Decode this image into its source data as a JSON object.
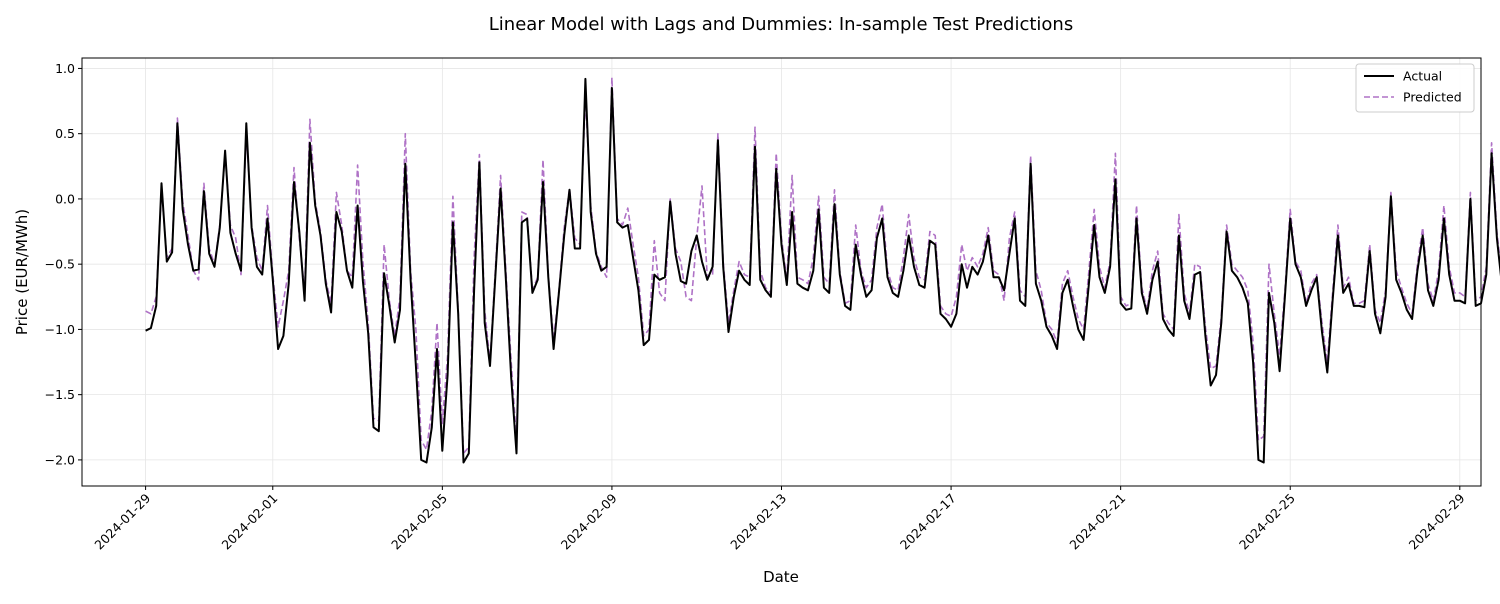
{
  "chart_data": {
    "type": "line",
    "title": "Linear Model with Lags and Dummies: In-sample Test Predictions",
    "xlabel": "Date",
    "ylabel": "Price (EUR/MWh)",
    "xlim": [
      "2024-01-27T12:00",
      "2024-02-29T12:00"
    ],
    "ylim": [
      -2.2,
      1.08
    ],
    "grid": true,
    "legend_position": "top-right",
    "x_ticks": [
      "2024-01-29",
      "2024-02-01",
      "2024-02-05",
      "2024-02-09",
      "2024-02-13",
      "2024-02-17",
      "2024-02-21",
      "2024-02-25",
      "2024-02-29"
    ],
    "y_ticks": [
      -2.0,
      -1.5,
      -1.0,
      -0.5,
      0.0,
      0.5,
      1.0
    ],
    "y_tick_labels": [
      "−2.0",
      "−1.5",
      "−1.0",
      "−0.5",
      "0.0",
      "0.5",
      "1.0"
    ],
    "x_start": "2024-01-29T00:00",
    "x_step_hours": 3,
    "series": [
      {
        "name": "Actual",
        "color": "#000000",
        "style": "solid",
        "values": [
          -1.01,
          -0.99,
          -0.82,
          0.12,
          -0.48,
          -0.41,
          0.58,
          -0.08,
          -0.35,
          -0.55,
          -0.54,
          0.06,
          -0.42,
          -0.52,
          -0.22,
          0.37,
          -0.26,
          -0.42,
          -0.55,
          0.58,
          -0.22,
          -0.52,
          -0.58,
          -0.15,
          -0.62,
          -1.15,
          -1.05,
          -0.65,
          0.13,
          -0.25,
          -0.78,
          0.43,
          -0.05,
          -0.28,
          -0.65,
          -0.87,
          -0.1,
          -0.25,
          -0.55,
          -0.68,
          -0.05,
          -0.63,
          -1.03,
          -1.75,
          -1.78,
          -0.57,
          -0.82,
          -1.1,
          -0.85,
          0.27,
          -0.62,
          -1.28,
          -2.0,
          -2.02,
          -1.75,
          -1.15,
          -1.93,
          -1.35,
          -0.18,
          -0.88,
          -2.02,
          -1.95,
          -0.7,
          0.28,
          -0.95,
          -1.28,
          -0.6,
          0.08,
          -0.62,
          -1.37,
          -1.95,
          -0.18,
          -0.15,
          -0.72,
          -0.62,
          0.13,
          -0.6,
          -1.15,
          -0.72,
          -0.28,
          0.07,
          -0.38,
          -0.38,
          0.92,
          -0.1,
          -0.42,
          -0.55,
          -0.52,
          0.85,
          -0.18,
          -0.22,
          -0.2,
          -0.45,
          -0.7,
          -1.12,
          -1.08,
          -0.58,
          -0.62,
          -0.6,
          -0.02,
          -0.42,
          -0.63,
          -0.65,
          -0.4,
          -0.28,
          -0.48,
          -0.62,
          -0.52,
          0.45,
          -0.52,
          -1.02,
          -0.75,
          -0.55,
          -0.62,
          -0.66,
          0.4,
          -0.62,
          -0.7,
          -0.75,
          0.23,
          -0.35,
          -0.66,
          -0.1,
          -0.65,
          -0.68,
          -0.7,
          -0.55,
          -0.08,
          -0.68,
          -0.72,
          -0.04,
          -0.58,
          -0.82,
          -0.85,
          -0.35,
          -0.58,
          -0.75,
          -0.7,
          -0.3,
          -0.15,
          -0.6,
          -0.72,
          -0.75,
          -0.55,
          -0.28,
          -0.52,
          -0.66,
          -0.68,
          -0.32,
          -0.35,
          -0.88,
          -0.92,
          -0.98,
          -0.88,
          -0.5,
          -0.68,
          -0.52,
          -0.58,
          -0.48,
          -0.28,
          -0.6,
          -0.6,
          -0.7,
          -0.42,
          -0.15,
          -0.78,
          -0.82,
          0.27,
          -0.65,
          -0.78,
          -0.98,
          -1.05,
          -1.15,
          -0.72,
          -0.62,
          -0.82,
          -1.0,
          -1.08,
          -0.65,
          -0.2,
          -0.6,
          -0.72,
          -0.52,
          0.15,
          -0.8,
          -0.85,
          -0.84,
          -0.15,
          -0.72,
          -0.88,
          -0.62,
          -0.48,
          -0.92,
          -1.0,
          -1.05,
          -0.28,
          -0.78,
          -0.92,
          -0.58,
          -0.56,
          -1.05,
          -1.43,
          -1.35,
          -0.95,
          -0.25,
          -0.55,
          -0.6,
          -0.68,
          -0.8,
          -1.25,
          -2.0,
          -2.02,
          -0.72,
          -0.95,
          -1.32,
          -0.75,
          -0.15,
          -0.5,
          -0.6,
          -0.82,
          -0.7,
          -0.6,
          -1.02,
          -1.33,
          -0.78,
          -0.28,
          -0.72,
          -0.65,
          -0.82,
          -0.82,
          -0.83,
          -0.4,
          -0.88,
          -1.03,
          -0.75,
          0.02,
          -0.62,
          -0.72,
          -0.85,
          -0.92,
          -0.55,
          -0.28,
          -0.7,
          -0.82,
          -0.62,
          -0.15,
          -0.58,
          -0.78,
          -0.78,
          -0.8,
          0.0,
          -0.82,
          -0.8,
          -0.58,
          0.35,
          -0.3,
          -0.68,
          -0.72,
          -0.58,
          0.23,
          -0.18
        ]
      },
      {
        "name": "Predicted",
        "color": "#af72c6",
        "style": "dashed",
        "values": [
          -0.86,
          -0.88,
          -0.75,
          0.08,
          -0.45,
          -0.38,
          0.62,
          -0.02,
          -0.28,
          -0.55,
          -0.62,
          0.12,
          -0.38,
          -0.5,
          -0.2,
          0.35,
          -0.2,
          -0.3,
          -0.58,
          0.52,
          -0.2,
          -0.45,
          -0.55,
          -0.05,
          -0.58,
          -0.98,
          -0.78,
          -0.55,
          0.24,
          -0.3,
          -0.7,
          0.61,
          -0.02,
          -0.25,
          -0.62,
          -0.8,
          0.05,
          -0.2,
          -0.55,
          -0.6,
          0.26,
          -0.48,
          -0.95,
          -1.68,
          -1.7,
          -0.35,
          -0.78,
          -1.05,
          -0.75,
          0.5,
          -0.55,
          -1.0,
          -1.85,
          -1.92,
          -1.62,
          -0.95,
          -1.72,
          -1.2,
          0.02,
          -0.85,
          -1.95,
          -1.9,
          -0.45,
          0.34,
          -0.85,
          -1.25,
          -0.55,
          0.18,
          -0.55,
          -1.25,
          -1.85,
          -0.1,
          -0.12,
          -0.7,
          -0.6,
          0.3,
          -0.58,
          -1.08,
          -0.7,
          -0.22,
          0.08,
          -0.3,
          -0.35,
          0.8,
          -0.05,
          -0.4,
          -0.52,
          -0.6,
          0.93,
          -0.15,
          -0.2,
          -0.07,
          -0.35,
          -0.6,
          -1.05,
          -1.0,
          -0.32,
          -0.72,
          -0.78,
          0.0,
          -0.38,
          -0.48,
          -0.75,
          -0.78,
          -0.3,
          0.1,
          -0.6,
          -0.58,
          0.5,
          -0.48,
          -0.95,
          -0.7,
          -0.48,
          -0.58,
          -0.6,
          0.55,
          -0.55,
          -0.68,
          -0.72,
          0.35,
          -0.3,
          -0.62,
          0.18,
          -0.6,
          -0.62,
          -0.65,
          -0.45,
          0.02,
          -0.6,
          -0.65,
          0.07,
          -0.55,
          -0.8,
          -0.78,
          -0.2,
          -0.55,
          -0.68,
          -0.62,
          -0.22,
          -0.04,
          -0.55,
          -0.68,
          -0.7,
          -0.45,
          -0.12,
          -0.45,
          -0.6,
          -0.62,
          -0.25,
          -0.28,
          -0.82,
          -0.88,
          -0.9,
          -0.75,
          -0.35,
          -0.55,
          -0.45,
          -0.52,
          -0.42,
          -0.22,
          -0.55,
          -0.58,
          -0.78,
          -0.3,
          -0.1,
          -0.7,
          -0.75,
          0.33,
          -0.55,
          -0.7,
          -0.95,
          -1.0,
          -1.1,
          -0.65,
          -0.55,
          -0.75,
          -0.92,
          -1.0,
          -0.55,
          -0.08,
          -0.52,
          -0.68,
          -0.48,
          0.35,
          -0.75,
          -0.82,
          -0.8,
          -0.05,
          -0.68,
          -0.85,
          -0.55,
          -0.4,
          -0.88,
          -0.95,
          -1.0,
          -0.12,
          -0.72,
          -0.88,
          -0.5,
          -0.52,
          -0.98,
          -1.3,
          -1.28,
          -0.9,
          -0.2,
          -0.5,
          -0.55,
          -0.6,
          -0.7,
          -1.1,
          -1.85,
          -1.82,
          -0.5,
          -0.88,
          -1.2,
          -0.7,
          -0.08,
          -0.48,
          -0.55,
          -0.8,
          -0.65,
          -0.58,
          -0.95,
          -1.25,
          -0.72,
          -0.2,
          -0.68,
          -0.6,
          -0.8,
          -0.8,
          -0.78,
          -0.35,
          -0.85,
          -0.95,
          -0.7,
          0.05,
          -0.55,
          -0.68,
          -0.8,
          -0.88,
          -0.5,
          -0.22,
          -0.65,
          -0.78,
          -0.55,
          -0.05,
          -0.52,
          -0.72,
          -0.72,
          -0.75,
          0.05,
          -0.78,
          -0.75,
          -0.52,
          0.43,
          -0.25,
          -0.62,
          -0.68,
          -0.5,
          0.27,
          -0.12
        ]
      }
    ]
  }
}
